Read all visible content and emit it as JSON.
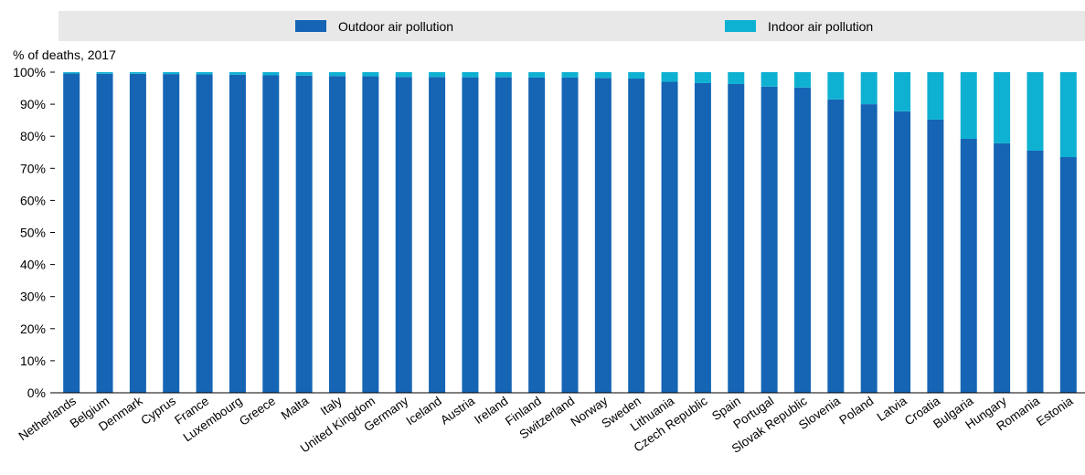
{
  "chart_data": {
    "type": "bar",
    "stacked": true,
    "ylabel": "% of deaths, 2017",
    "ylim": [
      0,
      100
    ],
    "y_ticks": [
      "0%",
      "10%",
      "20%",
      "30%",
      "40%",
      "50%",
      "60%",
      "70%",
      "80%",
      "90%",
      "100%"
    ],
    "legend_position": "top",
    "grid": false,
    "categories": [
      "Netherlands",
      "Belgium",
      "Denmark",
      "Cyprus",
      "France",
      "Luxembourg",
      "Greece",
      "Malta",
      "Italy",
      "United Kingdom",
      "Germany",
      "Iceland",
      "Austria",
      "Ireland",
      "Finland",
      "Switzerland",
      "Norway",
      "Sweden",
      "Lithuania",
      "Czech Republic",
      "Spain",
      "Portugal",
      "Slovak Republic",
      "Slovenia",
      "Poland",
      "Latvia",
      "Croatia",
      "Bulgaria",
      "Hungary",
      "Romania",
      "Estonia"
    ],
    "series": [
      {
        "name": "Outdoor air pollution",
        "color": "#1565b4",
        "values": [
          99.6,
          99.5,
          99.5,
          99.4,
          99.3,
          99.2,
          99.0,
          98.9,
          98.8,
          98.7,
          98.5,
          98.5,
          98.4,
          98.4,
          98.3,
          98.3,
          98.2,
          98.0,
          97.0,
          96.6,
          96.3,
          95.5,
          95.2,
          91.5,
          90.0,
          87.8,
          85.2,
          79.2,
          77.8,
          75.5,
          73.5
        ]
      },
      {
        "name": "Indoor air pollution",
        "color": "#0fb1d2",
        "values": [
          0.4,
          0.5,
          0.5,
          0.6,
          0.7,
          0.8,
          1.0,
          1.1,
          1.2,
          1.3,
          1.5,
          1.5,
          1.6,
          1.6,
          1.7,
          1.7,
          1.8,
          2.0,
          3.0,
          3.4,
          3.7,
          4.5,
          4.8,
          8.5,
          10.0,
          12.2,
          14.8,
          20.8,
          22.2,
          24.5,
          26.5
        ]
      }
    ]
  }
}
